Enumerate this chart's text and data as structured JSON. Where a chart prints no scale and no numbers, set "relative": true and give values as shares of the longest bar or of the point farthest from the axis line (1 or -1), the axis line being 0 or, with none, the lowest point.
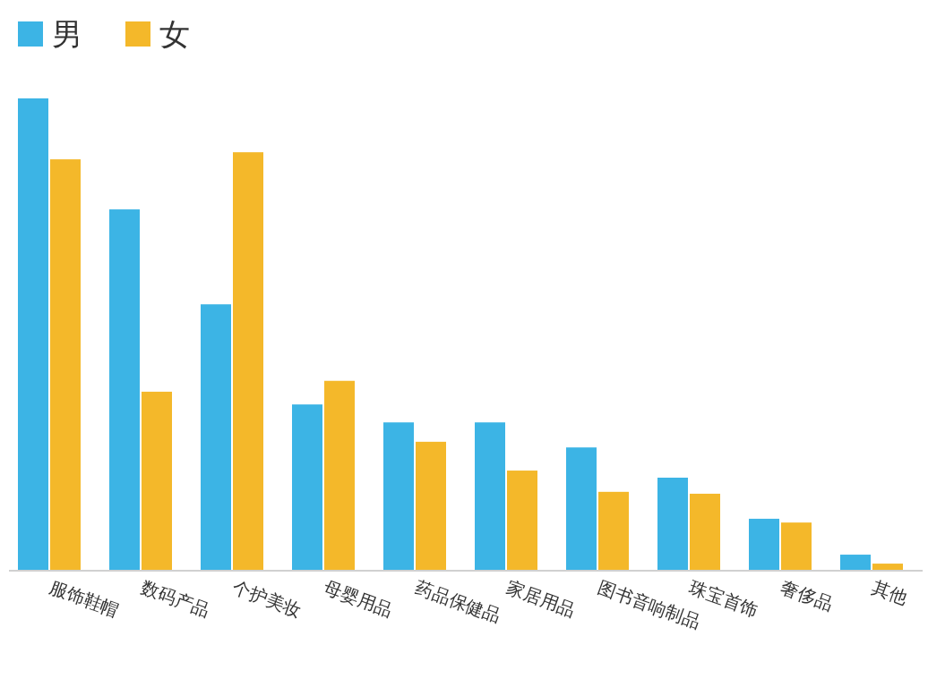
{
  "chart_data": {
    "type": "bar",
    "relative": true,
    "legend": "top left",
    "categories": [
      "服饰鞋帽",
      "数码产品",
      "个护美妆",
      "母婴用品",
      "药品保健品",
      "家居用品",
      "图书音响制品",
      "珠宝首饰",
      "奢侈品",
      "其他"
    ],
    "series": [
      {
        "name": "男",
        "color": "#3cb4e5",
        "values": [
          1.0,
          0.765,
          0.564,
          0.352,
          0.314,
          0.314,
          0.261,
          0.197,
          0.11,
          0.034
        ]
      },
      {
        "name": "女",
        "color": "#f4b82a",
        "values": [
          0.871,
          0.379,
          0.886,
          0.402,
          0.273,
          0.212,
          0.167,
          0.163,
          0.102,
          0.015
        ]
      }
    ]
  }
}
